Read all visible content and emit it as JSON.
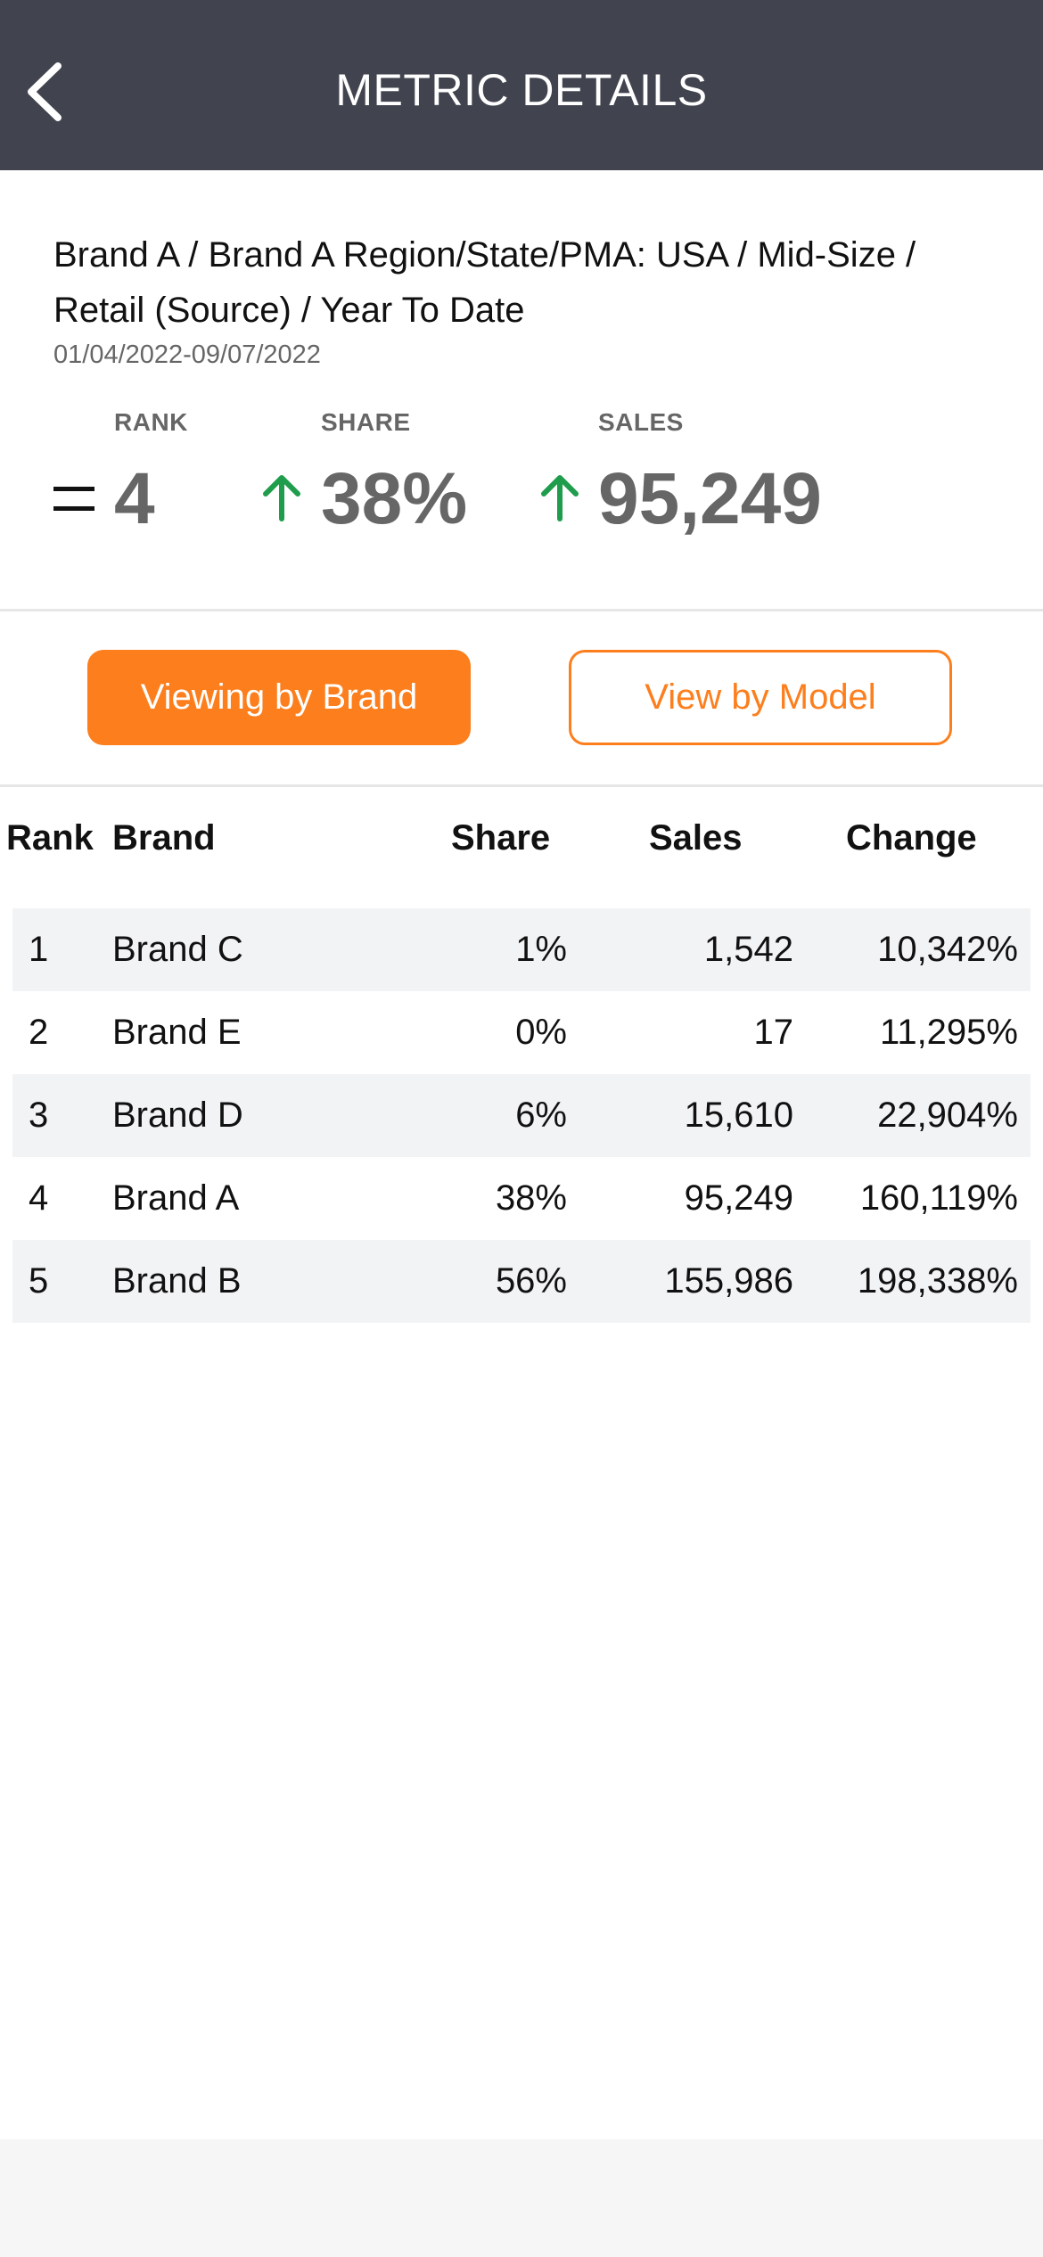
{
  "header": {
    "title": "METRIC DETAILS",
    "back_icon": "chevron-left-icon"
  },
  "summary": {
    "breadcrumb": "Brand A / Brand A Region/State/PMA: USA / Mid-Size / Retail (Source) / Year To Date",
    "date_range": "01/04/2022-09/07/2022",
    "rank": {
      "label": "RANK",
      "value": "4",
      "trend": "equal"
    },
    "share": {
      "label": "SHARE",
      "value": "38%",
      "trend": "up"
    },
    "sales": {
      "label": "SALES",
      "value": "95,249",
      "trend": "up"
    }
  },
  "view_toggle": {
    "brand_label": "Viewing by Brand",
    "model_label": "View by Model"
  },
  "table": {
    "headers": {
      "rank": "Rank",
      "brand": "Brand",
      "share": "Share",
      "sales": "Sales",
      "change": "Change"
    },
    "rows": [
      {
        "rank": "1",
        "brand": "Brand C",
        "share": "1%",
        "sales": "1,542",
        "change": "10,342%"
      },
      {
        "rank": "2",
        "brand": "Brand E",
        "share": "0%",
        "sales": "17",
        "change": "11,295%"
      },
      {
        "rank": "3",
        "brand": "Brand D",
        "share": "6%",
        "sales": "15,610",
        "change": "22,904%"
      },
      {
        "rank": "4",
        "brand": "Brand A",
        "share": "38%",
        "sales": "95,249",
        "change": "160,119%"
      },
      {
        "rank": "5",
        "brand": "Brand B",
        "share": "56%",
        "sales": "155,986",
        "change": "198,338%"
      }
    ]
  },
  "colors": {
    "header_bg": "#41444f",
    "accent": "#fd7e1c",
    "trend_up": "#1f9d4c",
    "row_alt": "#f2f3f5"
  }
}
